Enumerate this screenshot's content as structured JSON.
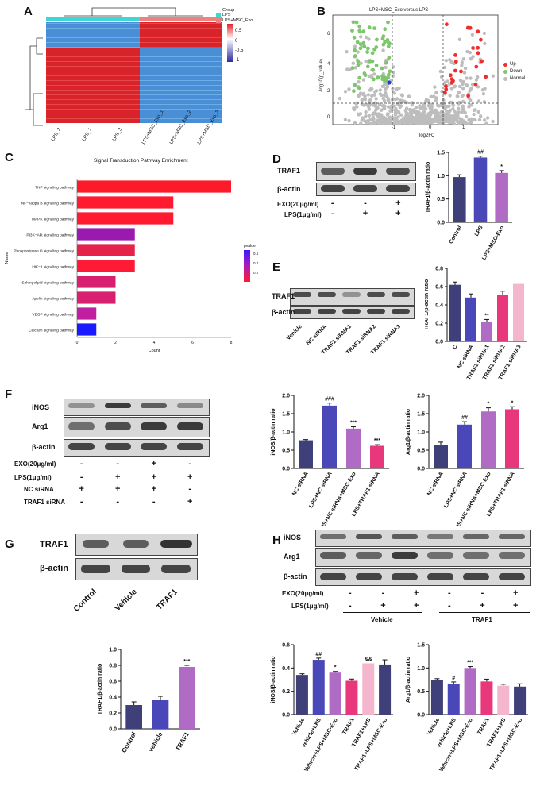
{
  "panels": {
    "A": "A",
    "B": "B",
    "C": "C",
    "D": "D",
    "E": "E",
    "F": "F",
    "G": "G",
    "H": "H"
  },
  "colors": {
    "navy": "#3f3f7a",
    "blue": "#4a47b8",
    "purple": "#b06bc4",
    "pink": "#e8377a",
    "lightpink": "#f4b6cc",
    "red": "#ef2d2d",
    "green": "#7cc66b",
    "gray": "#bdbdbd"
  },
  "heatmap": {
    "legend_title": "Group",
    "legend_items": [
      {
        "label": "LPS",
        "color": "#41d6d6"
      },
      {
        "label": "LPS+MSC_Exo",
        "color": "#f08080"
      }
    ],
    "scale_ticks": [
      "0.5",
      "0",
      "-0.5",
      "-1"
    ],
    "samples": [
      "LPS_2",
      "LPS_1",
      "LPS_3",
      "LPS+MSC_Exo_1",
      "LPS+MSC_Exo_2",
      "LPS+MSC_Exo_3"
    ]
  },
  "volcano": {
    "title": "LPS+MSC_Exo versus LPS",
    "xlabel": "log2FC",
    "ylabel": "-log10(p_value)",
    "xticks": [
      "-1",
      "0",
      "1"
    ],
    "yticks": [
      "0",
      "2",
      "4",
      "6"
    ],
    "legend": [
      {
        "label": "Up",
        "color": "#ef2d2d"
      },
      {
        "label": "Down",
        "color": "#7cc66b"
      },
      {
        "label": "Normal",
        "color": "#bdbdbd"
      }
    ]
  },
  "chart_data": [
    {
      "id": "C",
      "type": "bar",
      "orientation": "horizontal",
      "title": "Signal Transduction Pathway Enrichment",
      "xlabel": "Count",
      "ylabel": "Name",
      "xlim": [
        0,
        8
      ],
      "xticks": [
        "0",
        "2",
        "4",
        "6",
        "8"
      ],
      "legend_title": "pvalue",
      "legend_ticks": [
        "0.6",
        "0.4",
        "0.2"
      ],
      "categories": [
        "TNF signaling pathway",
        "NF−kappa B signaling pathway",
        "MAPK signaling pathway",
        "PI3K−Akt signaling pathway",
        "Phospholipase D signaling pathway",
        "HIF−1 signaling pathway",
        "Sphingolipid signaling pathway",
        "Apelin signaling pathway",
        "VEGF signaling pathway",
        "Calcium signaling pathway"
      ],
      "values": [
        8,
        5,
        5,
        3,
        3,
        3,
        2,
        2,
        1,
        1
      ],
      "bar_colors": [
        "#ff1a2a",
        "#ff1a30",
        "#ff1a30",
        "#9a1ab0",
        "#e6224a",
        "#ff1a36",
        "#d82070",
        "#d82070",
        "#c020a0",
        "#1a1aff"
      ]
    },
    {
      "id": "D",
      "type": "bar",
      "ylabel": "TRAF1/β-actin ratio",
      "ylim": [
        0,
        1.5
      ],
      "yticks": [
        "0.0",
        "0.5",
        "1.0",
        "1.5"
      ],
      "categories": [
        "Control",
        "LPS",
        "LPS+MSC-Exo"
      ],
      "values": [
        0.97,
        1.39,
        1.06
      ],
      "errors": [
        0.05,
        0.03,
        0.05
      ],
      "colors": [
        "#3f3f7a",
        "#4a47b8",
        "#b06bc4"
      ],
      "annotations": [
        "",
        "##",
        "*"
      ]
    },
    {
      "id": "E",
      "type": "bar",
      "ylabel": "TRAF1/β-actin ratio",
      "ylim": [
        0,
        0.8
      ],
      "yticks": [
        "0.0",
        "0.2",
        "0.4",
        "0.6",
        "0.8"
      ],
      "categories": [
        "C",
        "NC siRNA",
        "TRAF1 siRNA1",
        "TRAF1 siRNA2",
        "TRAF1 siRNA3"
      ],
      "values": [
        0.62,
        0.48,
        0.21,
        0.51,
        0.63
      ],
      "errors": [
        0.03,
        0.04,
        0.03,
        0.04,
        0
      ],
      "colors": [
        "#3f3f7a",
        "#4a47b8",
        "#b06bc4",
        "#e8377a",
        "#f4b6cc"
      ],
      "annotations": [
        "",
        "",
        "**",
        "",
        ""
      ]
    },
    {
      "id": "F1",
      "type": "bar",
      "ylabel": "iNOS/β-actin ratio",
      "ylim": [
        0,
        2.0
      ],
      "yticks": [
        "0.0",
        "0.5",
        "1.0",
        "1.5",
        "2.0"
      ],
      "categories": [
        "NC siRNA",
        "LPS+NC siRNA",
        "LPS+NC siRNA+MSC-Exo",
        "LPS+TRAF1 siRNA"
      ],
      "values": [
        0.77,
        1.72,
        1.09,
        0.62
      ],
      "errors": [
        0.02,
        0.07,
        0.05,
        0.03
      ],
      "colors": [
        "#3f3f7a",
        "#4a47b8",
        "#b06bc4",
        "#e8377a"
      ],
      "annotations": [
        "",
        "###",
        "***",
        "***"
      ]
    },
    {
      "id": "F2",
      "type": "bar",
      "ylabel": "Arg1/β-actin ratio",
      "ylim": [
        0,
        2.0
      ],
      "yticks": [
        "0.0",
        "0.5",
        "1.0",
        "1.5",
        "2.0"
      ],
      "categories": [
        "NC siRNA",
        "LPS+NC siRNA",
        "LPS+NC siRNA+MSC-Exo",
        "LPS+TRAF1 siRNA"
      ],
      "values": [
        0.65,
        1.2,
        1.56,
        1.62
      ],
      "errors": [
        0.07,
        0.08,
        0.1,
        0.07
      ],
      "colors": [
        "#3f3f7a",
        "#4a47b8",
        "#b06bc4",
        "#e8377a"
      ],
      "annotations": [
        "",
        "##",
        "*",
        "*"
      ]
    },
    {
      "id": "G",
      "type": "bar",
      "ylabel": "TRAF1/β-actin ratio",
      "ylim": [
        0,
        1.0
      ],
      "yticks": [
        "0.0",
        "0.2",
        "0.4",
        "0.6",
        "0.8",
        "1.0"
      ],
      "categories": [
        "Control",
        "vehicle",
        "TRAF1"
      ],
      "values": [
        0.3,
        0.36,
        0.78
      ],
      "errors": [
        0.04,
        0.05,
        0.02
      ],
      "colors": [
        "#3f3f7a",
        "#4a47b8",
        "#b06bc4"
      ],
      "annotations": [
        "",
        "",
        "***"
      ]
    },
    {
      "id": "H1",
      "type": "bar",
      "ylabel": "iNOS/β-actin ratio",
      "ylim": [
        0,
        0.6
      ],
      "yticks": [
        "0.0",
        "0.2",
        "0.4",
        "0.6"
      ],
      "categories": [
        "Vehicle",
        "Vehicle+LPS",
        "Vehicle+LPS+MSC-Exo",
        "TRAF1",
        "TRAF1+LPS",
        "TRAF1+LPS+MSC-Exo"
      ],
      "values": [
        0.34,
        0.47,
        0.36,
        0.29,
        0.44,
        0.43
      ],
      "errors": [
        0.01,
        0.015,
        0.01,
        0.015,
        0,
        0.04
      ],
      "colors": [
        "#3f3f7a",
        "#4a47b8",
        "#b06bc4",
        "#e8377a",
        "#f4b6cc",
        "#3f3f7a"
      ],
      "annotations": [
        "",
        "##",
        "*",
        "",
        "&&",
        ""
      ]
    },
    {
      "id": "H2",
      "type": "bar",
      "ylabel": "Arg1/β-actin ratio",
      "ylim": [
        0,
        1.5
      ],
      "yticks": [
        "0.0",
        "0.5",
        "1.0",
        "1.5"
      ],
      "categories": [
        "Vehicle",
        "Vehicle+LPS",
        "Vehicle+LPS+MSC-Exo",
        "TRAF1",
        "TRAF1+LPS",
        "TRAF1+LPS+MSC-Exo"
      ],
      "values": [
        0.74,
        0.65,
        1.0,
        0.71,
        0.62,
        0.6
      ],
      "errors": [
        0.03,
        0.05,
        0.03,
        0.05,
        0.03,
        0.06
      ],
      "colors": [
        "#3f3f7a",
        "#4a47b8",
        "#b06bc4",
        "#e8377a",
        "#f4b6cc",
        "#3f3f7a"
      ],
      "annotations": [
        "",
        "#",
        "***",
        "",
        "",
        ""
      ]
    }
  ],
  "blotD": {
    "rows": [
      "TRAF1",
      "β-actin"
    ],
    "conditions": [
      {
        "label": "EXO(20μg/ml)",
        "marks": [
          "-",
          "-",
          "+"
        ]
      },
      {
        "label": "LPS(1μg/ml)",
        "marks": [
          "-",
          "+",
          "+"
        ]
      }
    ]
  },
  "blotE": {
    "rows": [
      "TRAF1",
      "β-actin"
    ],
    "lanes": [
      "Vehicle",
      "NC siRNA",
      "TRAF1 siRNA1",
      "TRAF1 siRNA2",
      "TRAF1 siRNA3"
    ]
  },
  "blotF": {
    "rows": [
      "iNOS",
      "Arg1",
      "β-actin"
    ],
    "conditions": [
      {
        "label": "EXO(20μg/ml)",
        "marks": [
          "-",
          "-",
          "+",
          "-"
        ]
      },
      {
        "label": "LPS(1μg/ml)",
        "marks": [
          "-",
          "+",
          "+",
          "+"
        ]
      },
      {
        "label": "NC siRNA",
        "marks": [
          "+",
          "+",
          "+",
          "-"
        ]
      },
      {
        "label": "TRAF1 siRNA",
        "marks": [
          "-",
          "-",
          "-",
          "+"
        ]
      }
    ]
  },
  "blotG": {
    "rows": [
      "TRAF1",
      "β-actin"
    ],
    "lanes": [
      "Control",
      "Vehicle",
      "TRAF1"
    ]
  },
  "blotH": {
    "rows": [
      "iNOS",
      "Arg1",
      "β-actin"
    ],
    "conditions": [
      {
        "label": "EXO(20μg/ml)",
        "marks": [
          "-",
          "-",
          "+",
          "-",
          "-",
          "+"
        ]
      },
      {
        "label": "LPS(1μg/ml)",
        "marks": [
          "-",
          "+",
          "+",
          "-",
          "+",
          "+"
        ]
      }
    ],
    "groups": [
      "Vehicle",
      "TRAF1"
    ]
  }
}
